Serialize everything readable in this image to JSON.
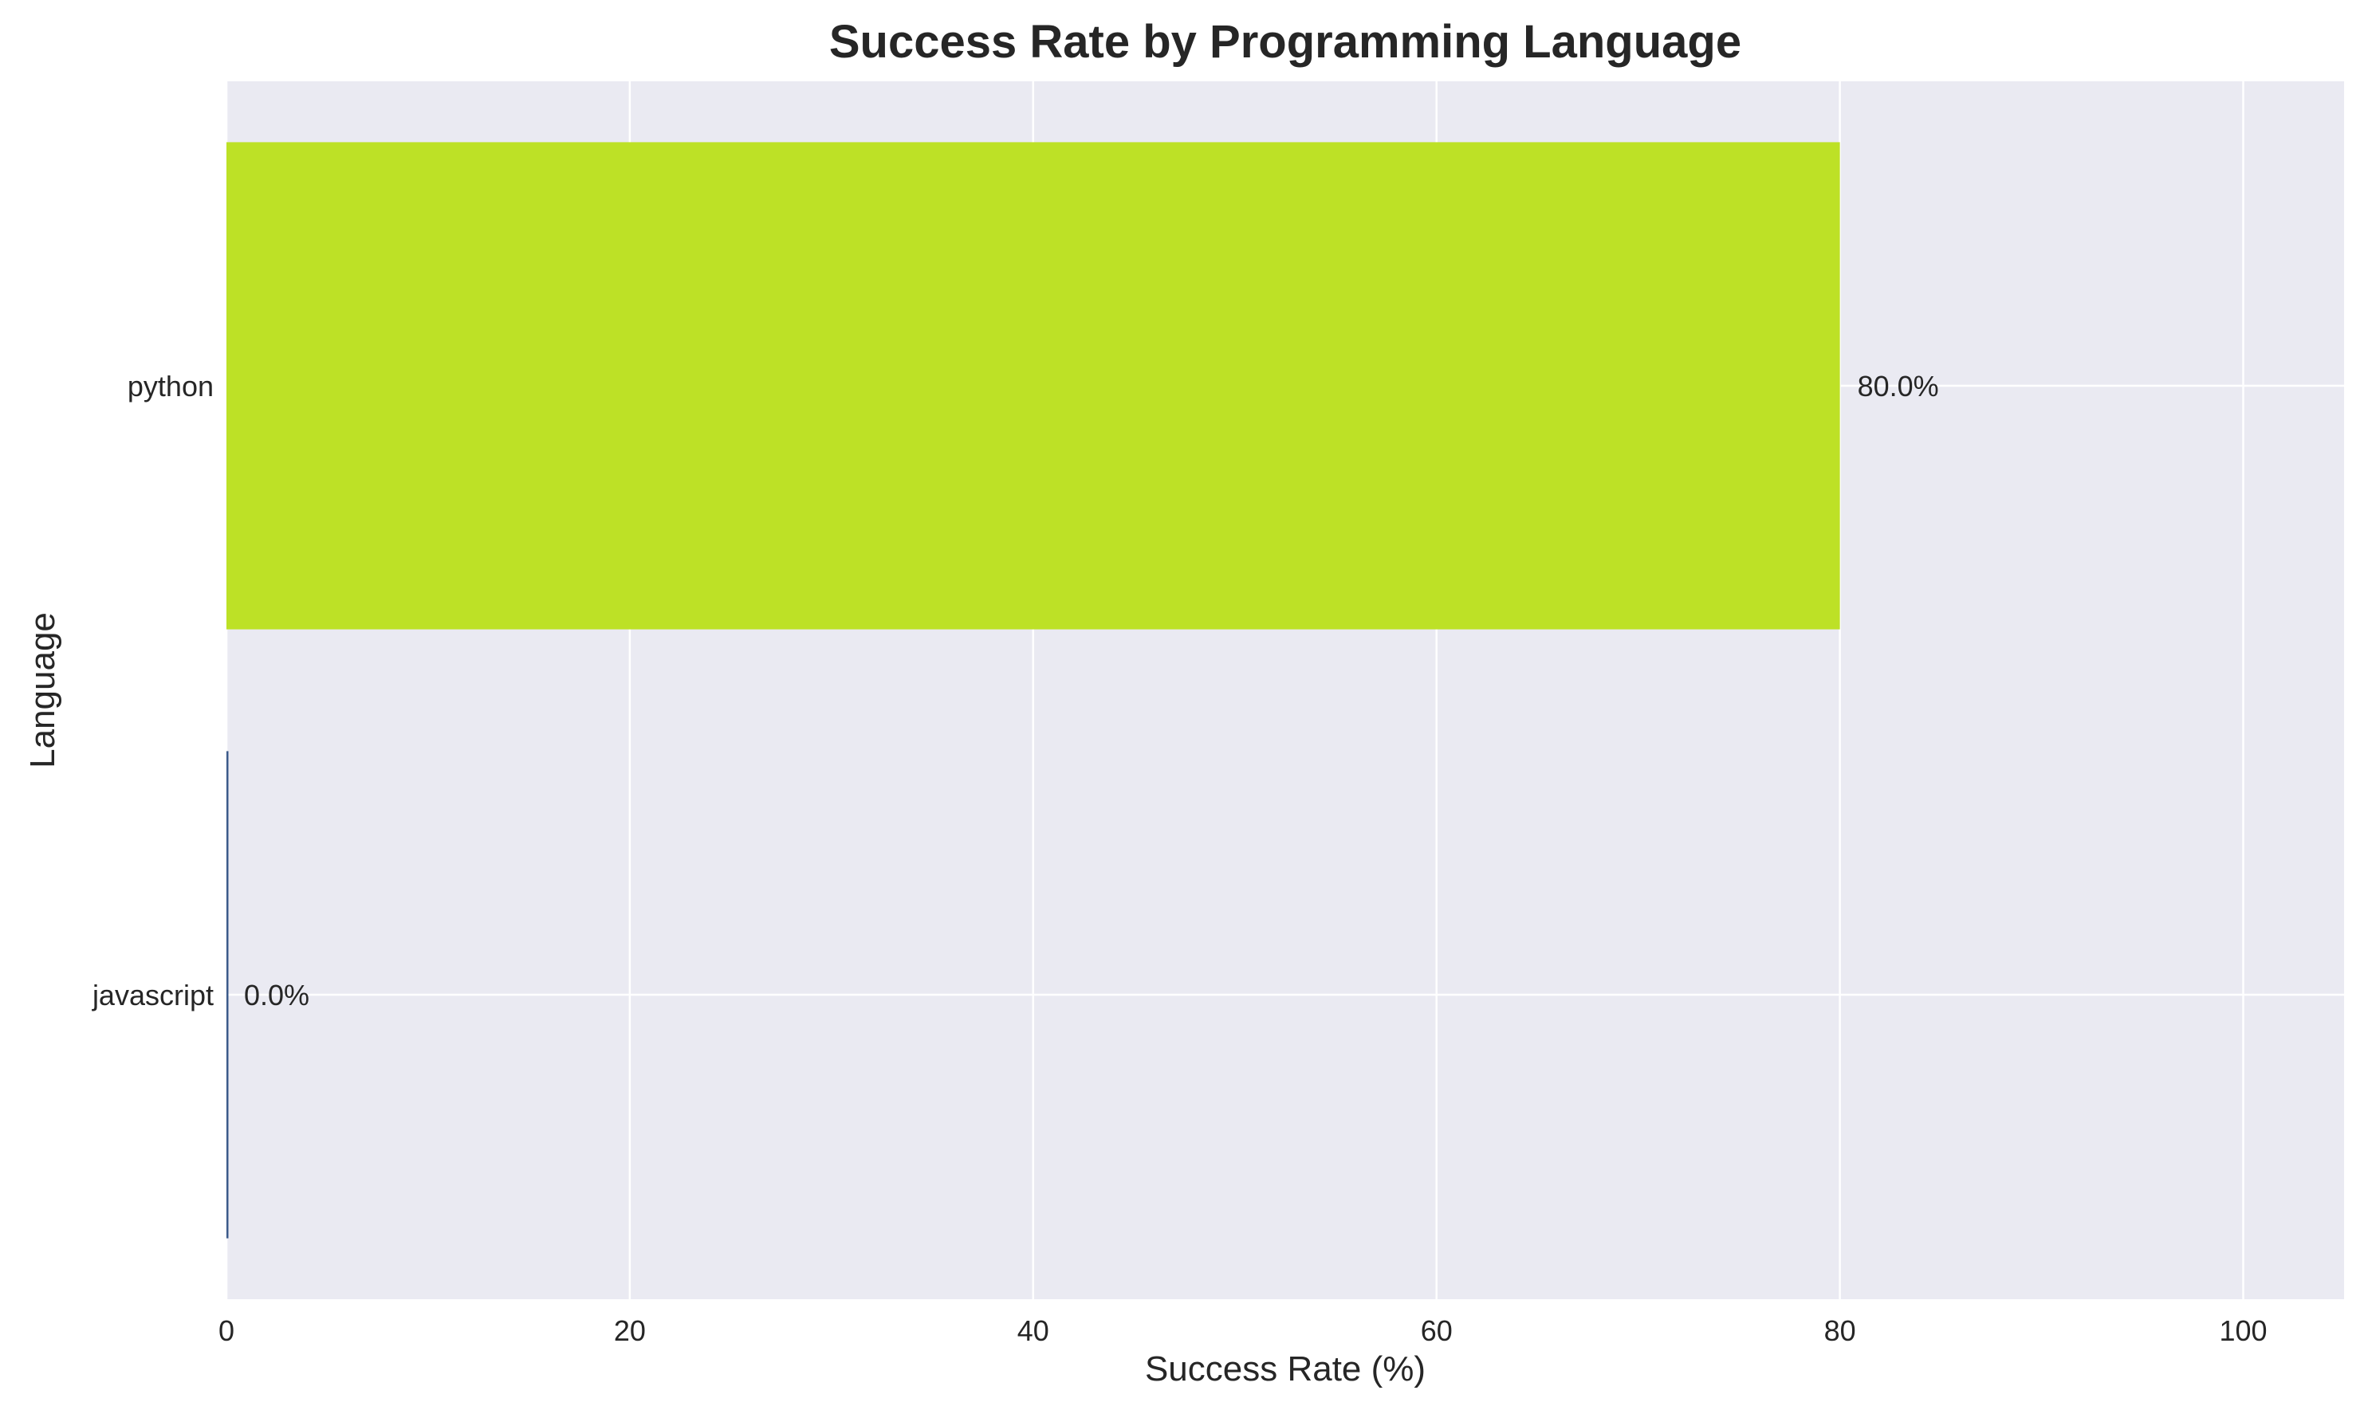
{
  "chart_data": {
    "type": "bar",
    "orientation": "horizontal",
    "title": "Success Rate by Programming Language",
    "xlabel": "Success Rate (%)",
    "ylabel": "Language",
    "categories": [
      "python",
      "javascript"
    ],
    "values": [
      80.0,
      0.0
    ],
    "data_labels": [
      "80.0%",
      "0.0%"
    ],
    "bar_colors": [
      "#bde126",
      "#3b5a8a"
    ],
    "xlim": [
      0,
      105
    ],
    "xticks": [
      0,
      20,
      40,
      60,
      80,
      100
    ],
    "xtick_labels": [
      "0",
      "20",
      "40",
      "60",
      "80",
      "100"
    ],
    "grid": true,
    "background_color": "#eaeaf2",
    "grid_color": "#ffffff"
  }
}
